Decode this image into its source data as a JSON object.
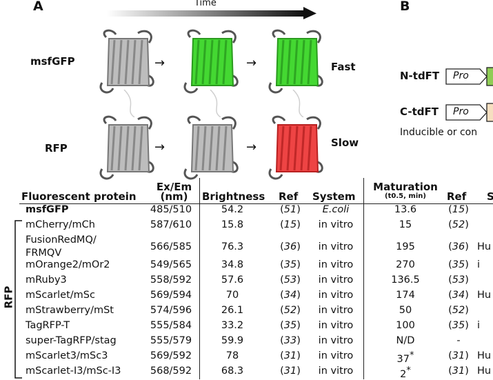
{
  "panel_a": "A",
  "panel_b": "B",
  "time_label": "Time",
  "proteins_fig": {
    "top_label": "msfGFP",
    "bottom_label": "RFP",
    "top_speed": "Fast",
    "bottom_speed": "Slow"
  },
  "constructs": {
    "n_label": "N-tdFT",
    "c_label": "C-tdFT",
    "pro": "Pro",
    "caption": "Inducible or con"
  },
  "colors": {
    "green": "#3ddc2a",
    "red": "#f04040",
    "grey": "#9a9a9a",
    "box_green": "#8fcc55",
    "box_beige": "#f6dfc0"
  },
  "table": {
    "headers": {
      "protein": "Fluorescent protein",
      "exem_top": "Ex/Em",
      "exem_bottom": "(nm)",
      "brightness": "Brightness",
      "ref": "Ref",
      "system": "System",
      "maturation": "Maturation",
      "maturation_sub": "(t0.5, min)",
      "ref2": "Ref",
      "s_trunc": "S"
    },
    "group_label": "RFP",
    "rows": [
      {
        "name": "msfGFP",
        "exem": "485/510",
        "bright": "54.2",
        "ref": "(51)",
        "system": "E.coli",
        "mat": "13.6",
        "ref2": "(15)",
        "extra": ""
      },
      {
        "name": "mCherry/mCh",
        "exem": "587/610",
        "bright": "15.8",
        "ref": "(15)",
        "system": "in vitro",
        "mat": "15",
        "ref2": "(52)",
        "extra": ""
      },
      {
        "name": "FusionRedMQ/",
        "name2": "FRMQV",
        "exem": "566/585",
        "bright": "76.3",
        "ref": "(36)",
        "system": "in vitro",
        "mat": "195",
        "ref2": "(36)",
        "extra": "Hu"
      },
      {
        "name": "mOrange2/mOr2",
        "exem": "549/565",
        "bright": "34.8",
        "ref": "(35)",
        "system": "in vitro",
        "mat": "270",
        "ref2": "(35)",
        "extra": "i"
      },
      {
        "name": "mRuby3",
        "exem": "558/592",
        "bright": "57.6",
        "ref": "(53)",
        "system": "in vitro",
        "mat": "136.5",
        "ref2": "(53)",
        "extra": ""
      },
      {
        "name": "mScarlet/mSc",
        "exem": "569/594",
        "bright": "70",
        "ref": "(34)",
        "system": "in vitro",
        "mat": "174",
        "ref2": "(34)",
        "extra": "Hu"
      },
      {
        "name": "mStrawberry/mSt",
        "exem": "574/596",
        "bright": "26.1",
        "ref": "(52)",
        "system": "in vitro",
        "mat": "50",
        "ref2": "(52)",
        "extra": ""
      },
      {
        "name": "TagRFP-T",
        "exem": "555/584",
        "bright": "33.2",
        "ref": "(35)",
        "system": "in vitro",
        "mat": "100",
        "ref2": "(35)",
        "extra": "i"
      },
      {
        "name": "super-TagRFP/stag",
        "exem": "555/579",
        "bright": "59.9",
        "ref": "(33)",
        "system": "in vitro",
        "mat": "N/D",
        "ref2": "-",
        "extra": ""
      },
      {
        "name": "mScarlet3/mSc3",
        "exem": "569/592",
        "bright": "78",
        "ref": "(31)",
        "system": "in vitro",
        "mat": "37*",
        "ref2": "(31)",
        "extra": "Hu"
      },
      {
        "name": "mScarlet-I3/mSc-I3",
        "exem": "568/592",
        "bright": "68.3",
        "ref": "(31)",
        "system": "in vitro",
        "mat": "2*",
        "ref2": "(31)",
        "extra": "Hu"
      }
    ]
  }
}
